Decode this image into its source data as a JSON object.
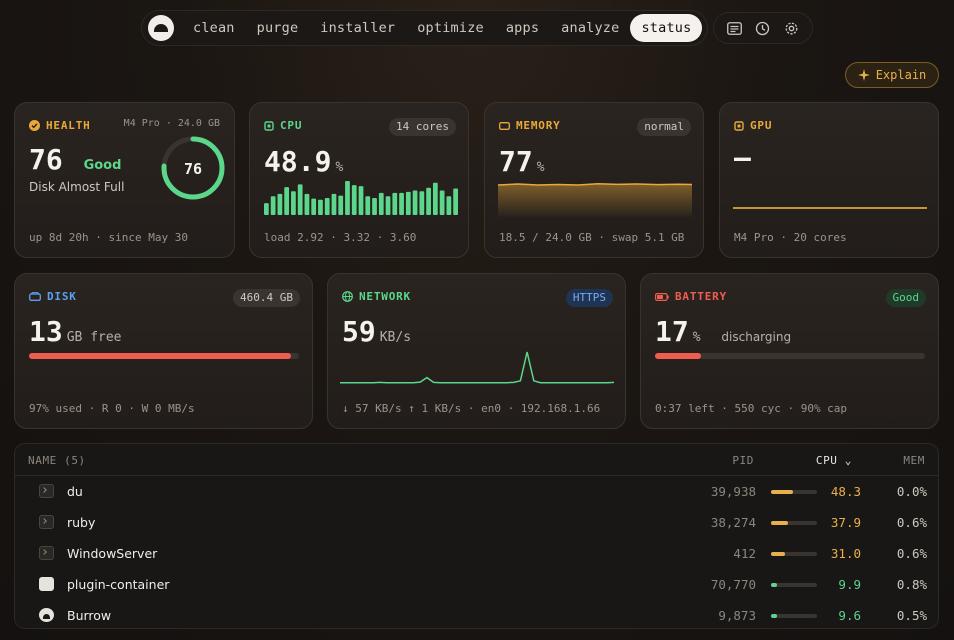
{
  "nav": {
    "items": [
      "clean",
      "purge",
      "installer",
      "optimize",
      "apps",
      "analyze",
      "status"
    ],
    "active": "status",
    "tools": [
      "notes-icon",
      "history-icon",
      "gear-icon"
    ]
  },
  "explain_label": "Explain",
  "health": {
    "title": "HEALTH",
    "chip": "M4 Pro · 24.0 GB",
    "score": "76",
    "grade": "Good",
    "subtitle": "Disk Almost Full",
    "ring_value": "76",
    "ring_fraction": 0.76,
    "footer": "up 8d 20h · since May 30"
  },
  "cpu": {
    "title": "CPU",
    "pill": "14 cores",
    "value": "48.9",
    "unit": "%",
    "bars": [
      0.35,
      0.55,
      0.62,
      0.82,
      0.7,
      0.9,
      0.62,
      0.48,
      0.45,
      0.5,
      0.62,
      0.57,
      1.0,
      0.88,
      0.85,
      0.55,
      0.5,
      0.65,
      0.55,
      0.65,
      0.65,
      0.68,
      0.72,
      0.7,
      0.8,
      0.95,
      0.72,
      0.55,
      0.78
    ],
    "footer": "load 2.92 · 3.32 · 3.60"
  },
  "memory": {
    "title": "MEMORY",
    "pill": "normal",
    "value": "77",
    "unit": "%",
    "level": 0.77,
    "footer": "18.5 / 24.0 GB · swap 5.1 GB"
  },
  "gpu": {
    "title": "GPU",
    "value": "–",
    "footer": "M4 Pro · 20 cores"
  },
  "disk": {
    "title": "DISK",
    "pill": "460.4 GB",
    "value": "13",
    "unit": "GB free",
    "used_fraction": 0.97,
    "footer": "97% used · R 0 · W 0 MB/s"
  },
  "network": {
    "title": "NETWORK",
    "pill": "HTTPS",
    "value": "59",
    "unit": "KB/s",
    "series": [
      0.04,
      0.04,
      0.04,
      0.04,
      0.04,
      0.04,
      0.05,
      0.04,
      0.04,
      0.04,
      0.04,
      0.04,
      0.06,
      0.2,
      0.05,
      0.04,
      0.04,
      0.04,
      0.04,
      0.04,
      0.04,
      0.04,
      0.04,
      0.04,
      0.04,
      0.04,
      0.05,
      0.1,
      1.0,
      0.1,
      0.04,
      0.04,
      0.04,
      0.04,
      0.04,
      0.04,
      0.04,
      0.04,
      0.04,
      0.04,
      0.04,
      0.05
    ],
    "footer": "↓ 57 KB/s  ↑ 1 KB/s · en0 · 192.168.1.66"
  },
  "battery": {
    "title": "BATTERY",
    "pill": "Good",
    "value": "17",
    "unit": "%",
    "state": "discharging",
    "level": 0.17,
    "footer": "0:37 left · 550 cyc · 90% cap"
  },
  "table": {
    "headers": {
      "name": "NAME (5)",
      "pid": "PID",
      "cpu": "CPU",
      "mem": "MEM"
    },
    "rows": [
      {
        "name": "du",
        "pid": "39,938",
        "cpu": "48.3",
        "cpu_level": 0.483,
        "mem": "0.0%",
        "color": "#e8b04a",
        "icon": "terminal-icon"
      },
      {
        "name": "ruby",
        "pid": "38,274",
        "cpu": "37.9",
        "cpu_level": 0.379,
        "mem": "0.6%",
        "color": "#e8b04a",
        "icon": "terminal-icon"
      },
      {
        "name": "WindowServer",
        "pid": "412",
        "cpu": "31.0",
        "cpu_level": 0.31,
        "mem": "0.6%",
        "color": "#e8b04a",
        "icon": "terminal-icon"
      },
      {
        "name": "plugin-container",
        "pid": "70,770",
        "cpu": "9.9",
        "cpu_level": 0.099,
        "mem": "0.8%",
        "color": "#5bd68a",
        "icon": "app-icon"
      },
      {
        "name": "Burrow",
        "pid": "9,873",
        "cpu": "9.6",
        "cpu_level": 0.096,
        "mem": "0.5%",
        "color": "#5bd68a",
        "icon": "burrow-icon"
      }
    ]
  },
  "colors": {
    "health": "#e8a93a",
    "cpu": "#5bd68a",
    "memory": "#e8a93a",
    "gpu": "#e8a93a",
    "disk": "#5aa0ee",
    "network": "#5bd68a",
    "battery": "#ef5d50"
  }
}
